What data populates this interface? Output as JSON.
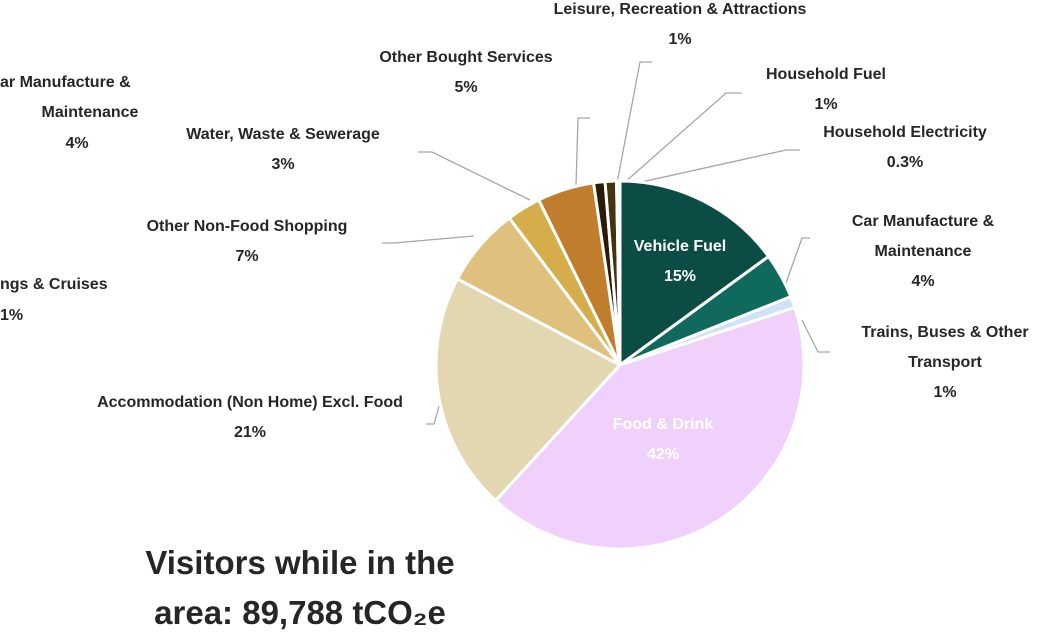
{
  "chart_data": {
    "type": "pie",
    "title": "Visitors while in the area: 89,788 tCO₂e",
    "categories": [
      "Vehicle Fuel",
      "Car Manufacture & Maintenance",
      "Trains, Buses & Other Transport",
      "Food & Drink",
      "Accommodation (Non Home) Excl. Food",
      "Other Non-Food Shopping",
      "Water, Waste & Sewerage",
      "Other Bought Services",
      "Leisure, Recreation & Attractions",
      "Household Fuel",
      "Household Electricity"
    ],
    "values": [
      15,
      4,
      1,
      42,
      21,
      7,
      3,
      5,
      1,
      1,
      0.3
    ],
    "value_labels": [
      "15%",
      "4%",
      "1%",
      "42%",
      "21%",
      "7%",
      "3%",
      "5%",
      "1%",
      "1%",
      "0.3%"
    ],
    "colors": [
      "#0b4c44",
      "#10695d",
      "#cfe2f7",
      "#f0d1fb",
      "#e3d7b1",
      "#dfc07c",
      "#d5ae4b",
      "#c07d2c",
      "#2b1a08",
      "#45330f",
      "#cfdff2"
    ],
    "annotations": [
      "ar Manufacture &",
      "Maintenance",
      "4%",
      "ngs & Cruises",
      "1%"
    ]
  }
}
